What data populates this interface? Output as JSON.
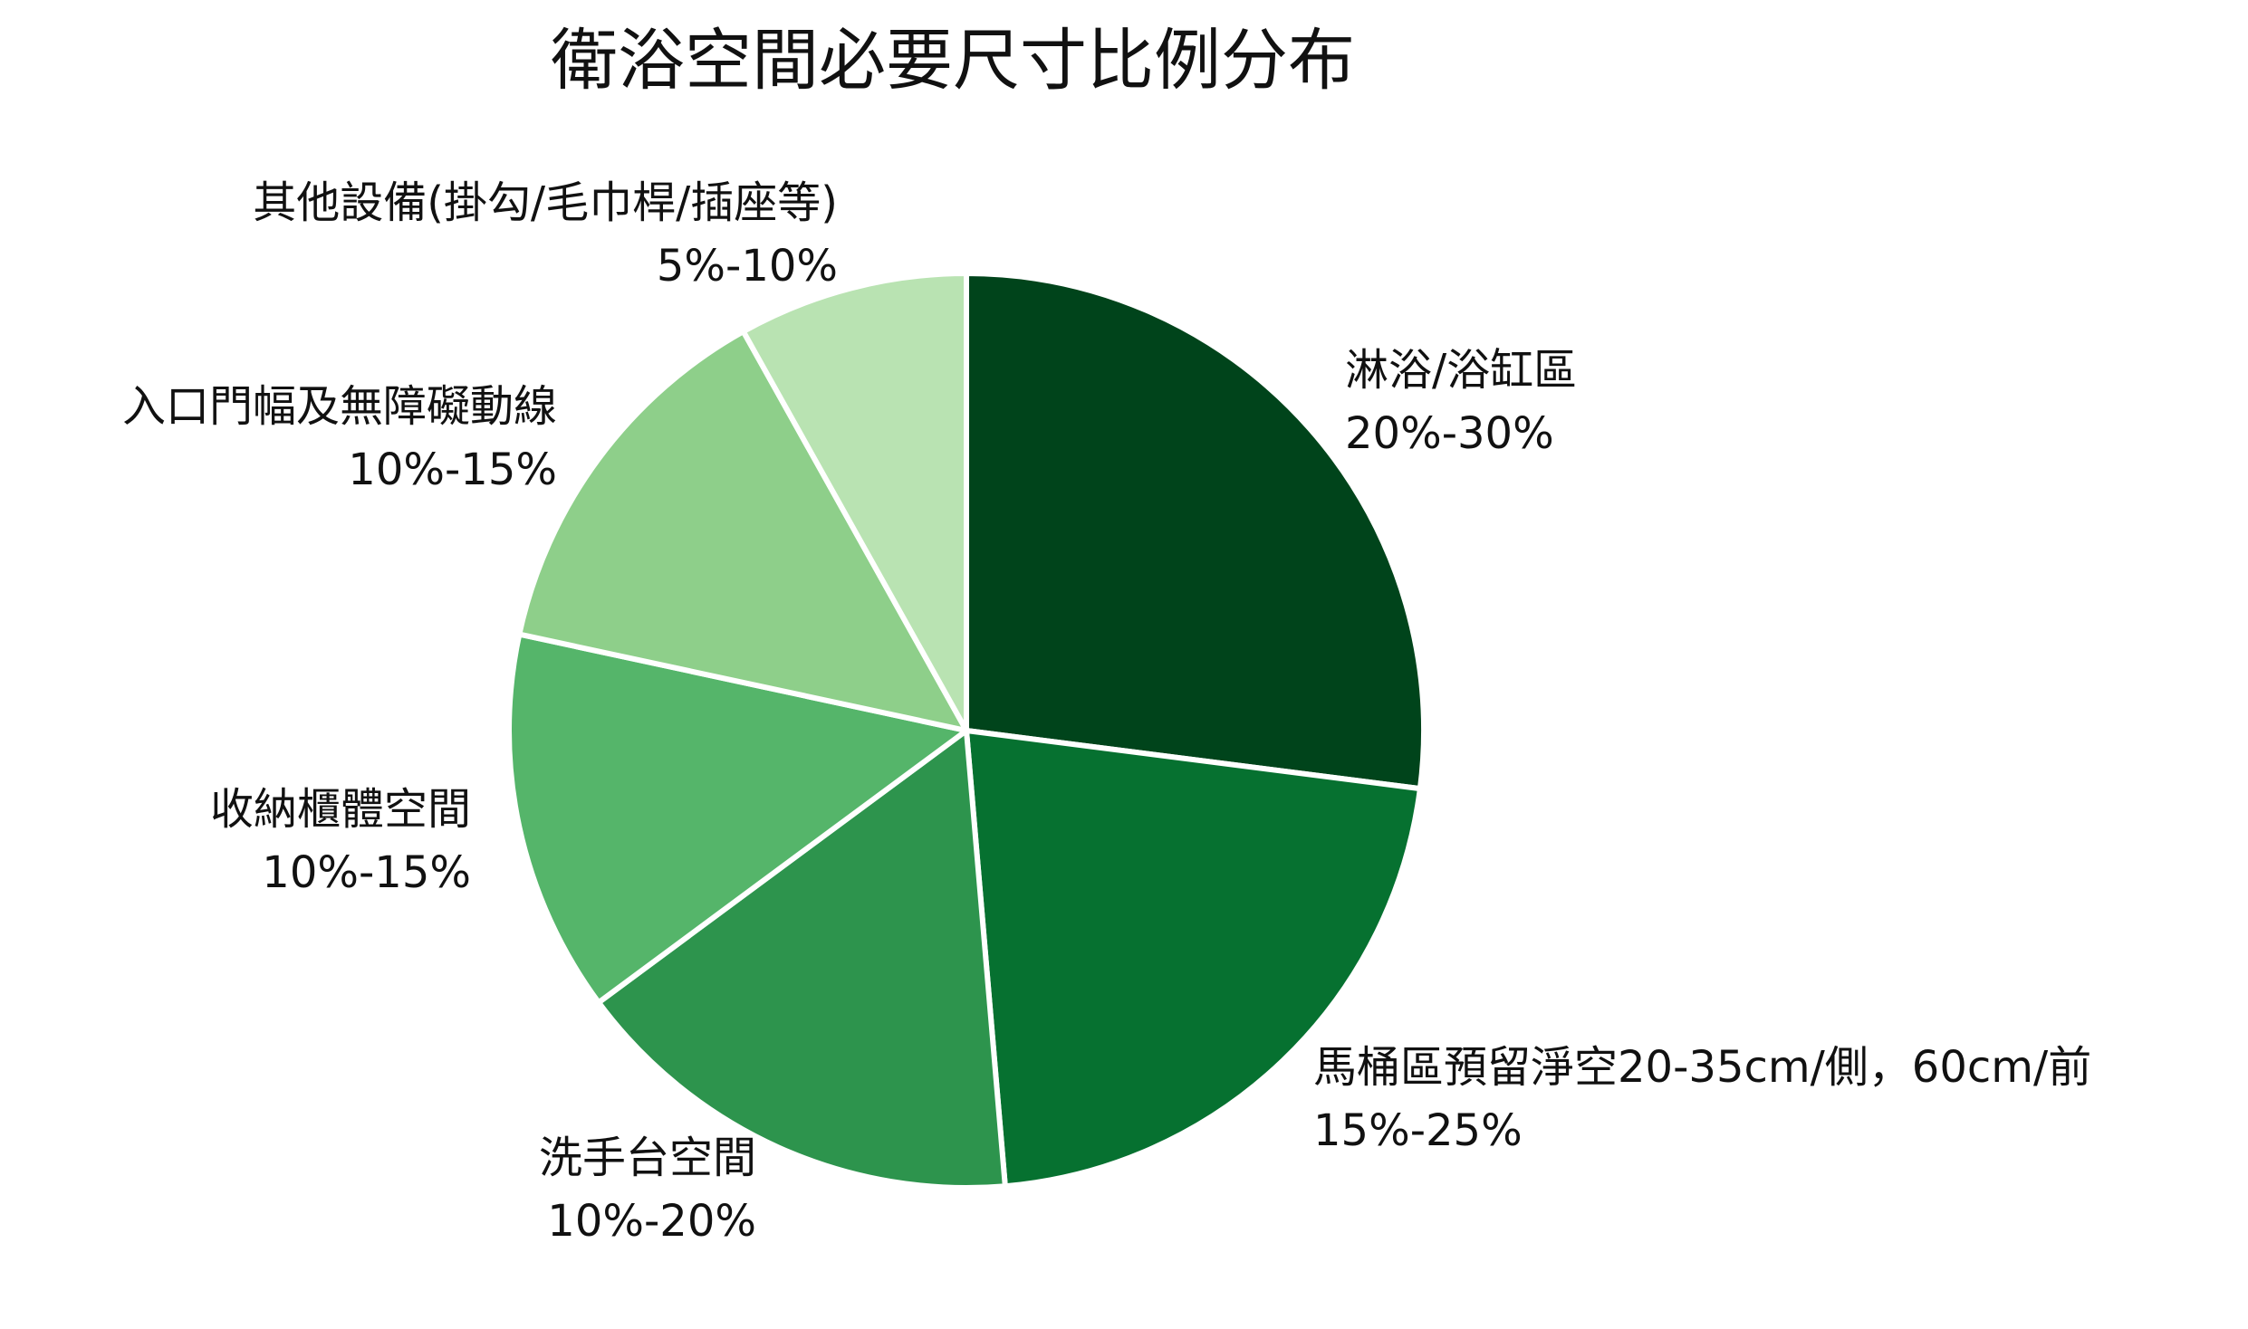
{
  "chart_data": {
    "type": "pie",
    "title": "衛浴空間必要尺寸比例分布",
    "legend": "none",
    "slices": [
      {
        "label": "淋浴/浴缸區",
        "range": "20%-30%",
        "value": 25,
        "color": "#00441b"
      },
      {
        "label": "馬桶區預留淨空20-35cm/側，60cm/前",
        "range": "15%-25%",
        "value": 20,
        "color": "#067130"
      },
      {
        "label": "洗手台空間",
        "range": "10%-20%",
        "value": 15,
        "color": "#2d944d"
      },
      {
        "label": "收納櫃體空間",
        "range": "10%-15%",
        "value": 12.5,
        "color": "#55b56a"
      },
      {
        "label": "入口門幅及無障礙動線",
        "range": "10%-15%",
        "value": 12.5,
        "color": "#8ecf8a"
      },
      {
        "label": "其他設備(掛勾/毛巾桿/插座等)",
        "range": "5%-10%",
        "value": 7.5,
        "color": "#b9e3b2"
      }
    ]
  }
}
